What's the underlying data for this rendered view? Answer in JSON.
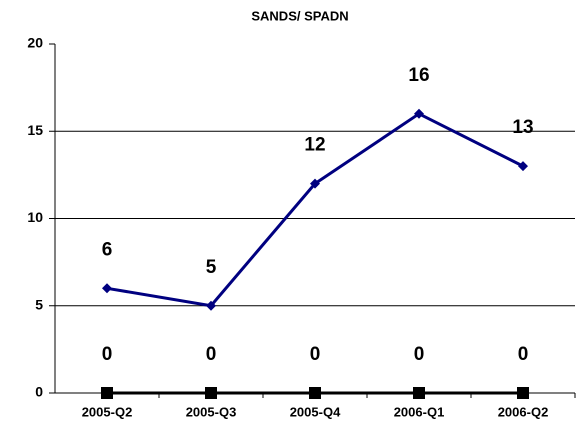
{
  "chart_data": {
    "type": "line",
    "title": "SANDS/ SPADN",
    "categories": [
      "2005-Q2",
      "2005-Q3",
      "2005-Q4",
      "2006-Q1",
      "2006-Q2"
    ],
    "series": [
      {
        "color": "#000080",
        "marker": "diamond",
        "values": [
          6,
          5,
          12,
          16,
          13
        ]
      },
      {
        "color": "#000000",
        "marker": "square",
        "values": [
          0,
          0,
          0,
          0,
          0
        ]
      }
    ],
    "ylim": [
      0,
      20
    ],
    "yticks": [
      0,
      5,
      10,
      15,
      20
    ],
    "grid": true,
    "data_labels": true
  }
}
